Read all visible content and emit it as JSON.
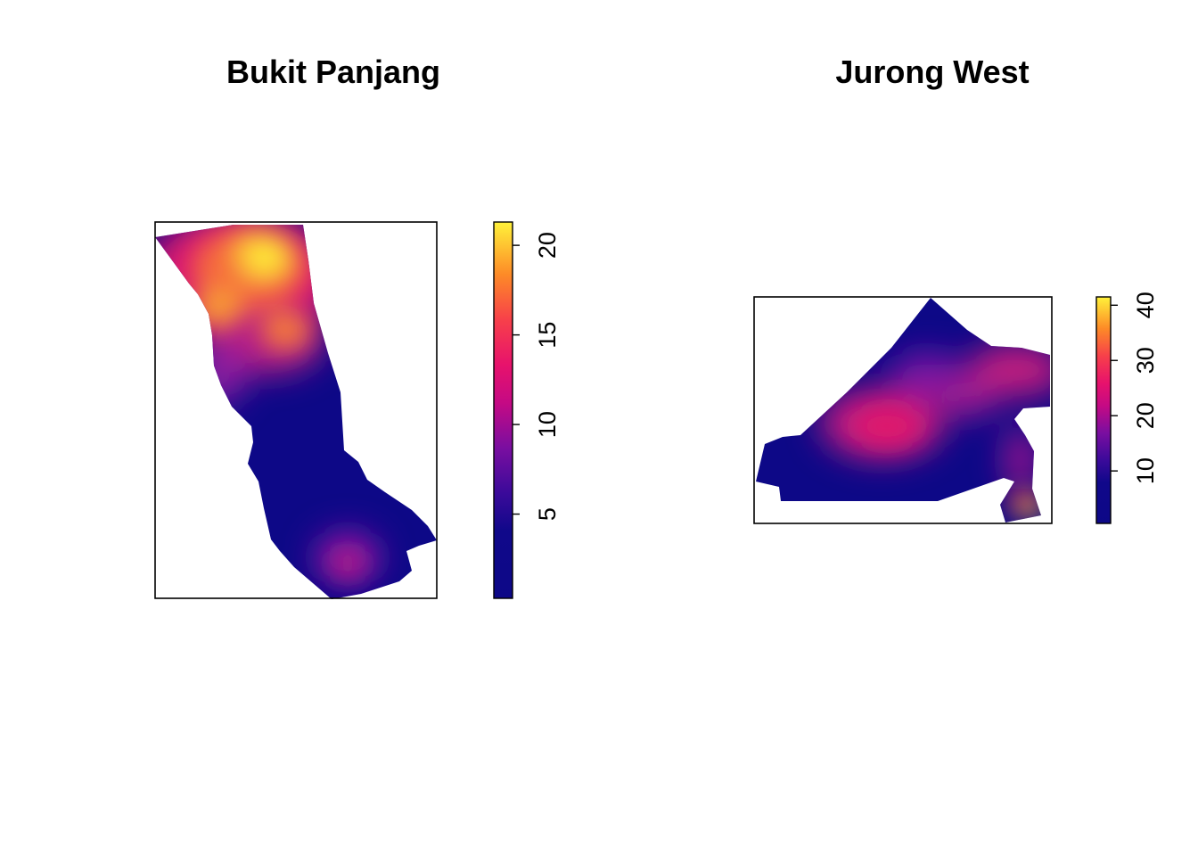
{
  "chart_data": [
    {
      "type": "heatmap",
      "title": "Bukit Panjang",
      "colorbar": {
        "min": 0.3,
        "max": 21.3,
        "ticks": [
          5,
          10,
          15,
          20
        ],
        "palette": "plasma"
      },
      "grid": false,
      "legend_position": "right"
    },
    {
      "type": "heatmap",
      "title": "Jurong West",
      "colorbar": {
        "min": 0.5,
        "max": 41.5,
        "ticks": [
          10,
          20,
          30,
          40
        ],
        "palette": "plasma"
      },
      "grid": false,
      "legend_position": "right"
    }
  ],
  "colors": {
    "low": "#0d0887",
    "mid": "#e7006d",
    "high": "#fff23a"
  }
}
